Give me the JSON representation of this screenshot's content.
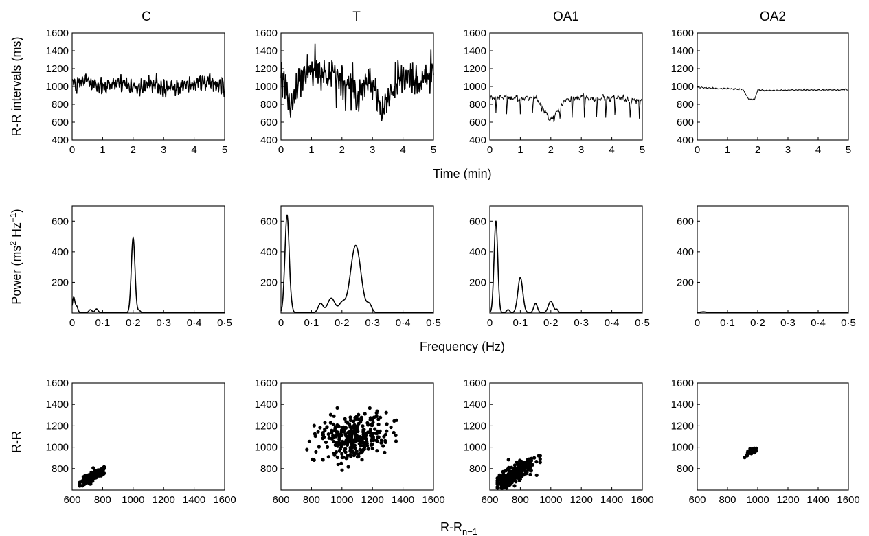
{
  "columns": [
    "C",
    "T",
    "OA1",
    "OA2"
  ],
  "row_labels": {
    "rr_ylabel": "R-R intervals (ms)",
    "time_xlabel": "Time (min)",
    "power_ylabel_base": "Power (ms",
    "power_ylabel_sup1": "2",
    "power_ylabel_mid": " Hz",
    "power_ylabel_sup2": "−1",
    "power_ylabel_end": ")",
    "freq_xlabel": "Frequency (Hz)",
    "poincare_ylabel": "R-R",
    "poincare_xlabel_base": "R-R",
    "poincare_xlabel_sub": "n−1"
  },
  "chart_data": [
    {
      "type": "line",
      "row": "rr_intervals",
      "xlim": [
        0,
        5
      ],
      "ylim": [
        400,
        1600
      ],
      "xticks": [
        "0",
        "1",
        "2",
        "3",
        "4",
        "5"
      ],
      "yticks": [
        "400",
        "600",
        "800",
        "1000",
        "1200",
        "1400",
        "1600"
      ],
      "grid": false,
      "series": [
        {
          "column": "C",
          "mean": 1010,
          "amp": 70,
          "noise": 40,
          "cycles": 60,
          "x": [
            0,
            0.5,
            1,
            1.5,
            2,
            2.5,
            3,
            3.5,
            4,
            4.5,
            5
          ],
          "y": [
            1010,
            1060,
            1000,
            1040,
            990,
            1020,
            1000,
            990,
            1040,
            1050,
            980
          ]
        },
        {
          "column": "T",
          "mean": 1100,
          "amp": 90,
          "noise": 90,
          "cycles": 60,
          "x": [
            0,
            0.3,
            0.8,
            1.5,
            2,
            2.5,
            3,
            3.3,
            4,
            4.5,
            5
          ],
          "y": [
            1100,
            760,
            1250,
            1150,
            1050,
            900,
            1100,
            750,
            1150,
            1050,
            1150
          ],
          "dips": [
            [
              0.3,
              720
            ],
            [
              2.5,
              800
            ],
            [
              3.35,
              700
            ],
            [
              3.0,
              850
            ]
          ]
        },
        {
          "column": "OA1",
          "mean": 870,
          "amp": 20,
          "noise": 15,
          "cycles": 30,
          "x": [
            0,
            0.5,
            1,
            1.5,
            2,
            2.5,
            3,
            3.5,
            4,
            4.5,
            5
          ],
          "y": [
            870,
            880,
            870,
            880,
            620,
            850,
            880,
            860,
            880,
            850,
            840
          ],
          "dips": [
            [
              0.2,
              700
            ],
            [
              0.55,
              690
            ],
            [
              1.0,
              690
            ],
            [
              1.4,
              700
            ],
            [
              1.7,
              720
            ],
            [
              2.1,
              600
            ],
            [
              2.3,
              640
            ],
            [
              2.7,
              650
            ],
            [
              3.1,
              650
            ],
            [
              3.5,
              660
            ],
            [
              3.8,
              650
            ],
            [
              4.1,
              680
            ],
            [
              4.6,
              650
            ],
            [
              4.9,
              640
            ]
          ]
        },
        {
          "column": "OA2",
          "mean": 975,
          "amp": 6,
          "noise": 3,
          "cycles": 40,
          "x": [
            0,
            0.5,
            1,
            1.5,
            1.7,
            1.9,
            2,
            2.5,
            3,
            4,
            5
          ],
          "y": [
            990,
            980,
            975,
            970,
            860,
            860,
            960,
            955,
            960,
            960,
            965
          ],
          "dips": [
            [
              1.72,
              860
            ],
            [
              1.88,
              850
            ]
          ]
        }
      ]
    },
    {
      "type": "line",
      "row": "power_spectrum",
      "xlim": [
        0,
        0.5
      ],
      "ylim": [
        0,
        700
      ],
      "xticks": [
        "0",
        "0·1",
        "0·2",
        "0·3",
        "0·4",
        "0·5"
      ],
      "yticks": [
        "200",
        "400",
        "600"
      ],
      "grid": false,
      "series": [
        {
          "column": "C",
          "peaks": [
            [
              0.005,
              100,
              0.004
            ],
            [
              0.015,
              40,
              0.004
            ],
            [
              0.06,
              20,
              0.005
            ],
            [
              0.08,
              25,
              0.005
            ],
            [
              0.2,
              490,
              0.006
            ],
            [
              0.22,
              15,
              0.004
            ]
          ]
        },
        {
          "column": "T",
          "peaks": [
            [
              0.02,
              640,
              0.007
            ],
            [
              0.035,
              20,
              0.004
            ],
            [
              0.13,
              60,
              0.008
            ],
            [
              0.165,
              95,
              0.012
            ],
            [
              0.2,
              60,
              0.01
            ],
            [
              0.245,
              440,
              0.017
            ],
            [
              0.29,
              50,
              0.008
            ]
          ]
        },
        {
          "column": "OA1",
          "peaks": [
            [
              0.02,
              600,
              0.006
            ],
            [
              0.06,
              20,
              0.005
            ],
            [
              0.1,
              230,
              0.008
            ],
            [
              0.15,
              60,
              0.006
            ],
            [
              0.2,
              75,
              0.008
            ],
            [
              0.22,
              20,
              0.004
            ]
          ]
        },
        {
          "column": "OA2",
          "peaks": [
            [
              0.02,
              6,
              0.01
            ],
            [
              0.2,
              3,
              0.02
            ]
          ]
        }
      ]
    },
    {
      "type": "scatter",
      "row": "poincare",
      "xlim": [
        600,
        1600
      ],
      "ylim": [
        600,
        1600
      ],
      "xticks": [
        "600",
        "800",
        "1000",
        "1200",
        "1400",
        "1600"
      ],
      "yticks": [
        "800",
        "1000",
        "1200",
        "1400",
        "1600"
      ],
      "grid": false,
      "series": [
        {
          "column": "C",
          "cx": 725,
          "cy": 715,
          "spread": 45,
          "corr": 0.85,
          "n": 160,
          "xmin": 650,
          "xmax": 810,
          "ymin": 640,
          "ymax": 815
        },
        {
          "column": "T",
          "cx": 1080,
          "cy": 1090,
          "spread": 115,
          "corr": 0.3,
          "n": 300,
          "xmin": 720,
          "xmax": 1400,
          "ymin": 720,
          "ymax": 1400
        },
        {
          "column": "OA1",
          "cx": 780,
          "cy": 760,
          "spread": 70,
          "corr": 0.75,
          "n": 260,
          "xmin": 650,
          "xmax": 930,
          "ymin": 620,
          "ymax": 920
        },
        {
          "column": "OA2",
          "cx": 955,
          "cy": 955,
          "spread": 20,
          "corr": 0.6,
          "n": 45,
          "xmin": 840,
          "xmax": 990,
          "ymin": 840,
          "ymax": 990
        }
      ]
    }
  ]
}
